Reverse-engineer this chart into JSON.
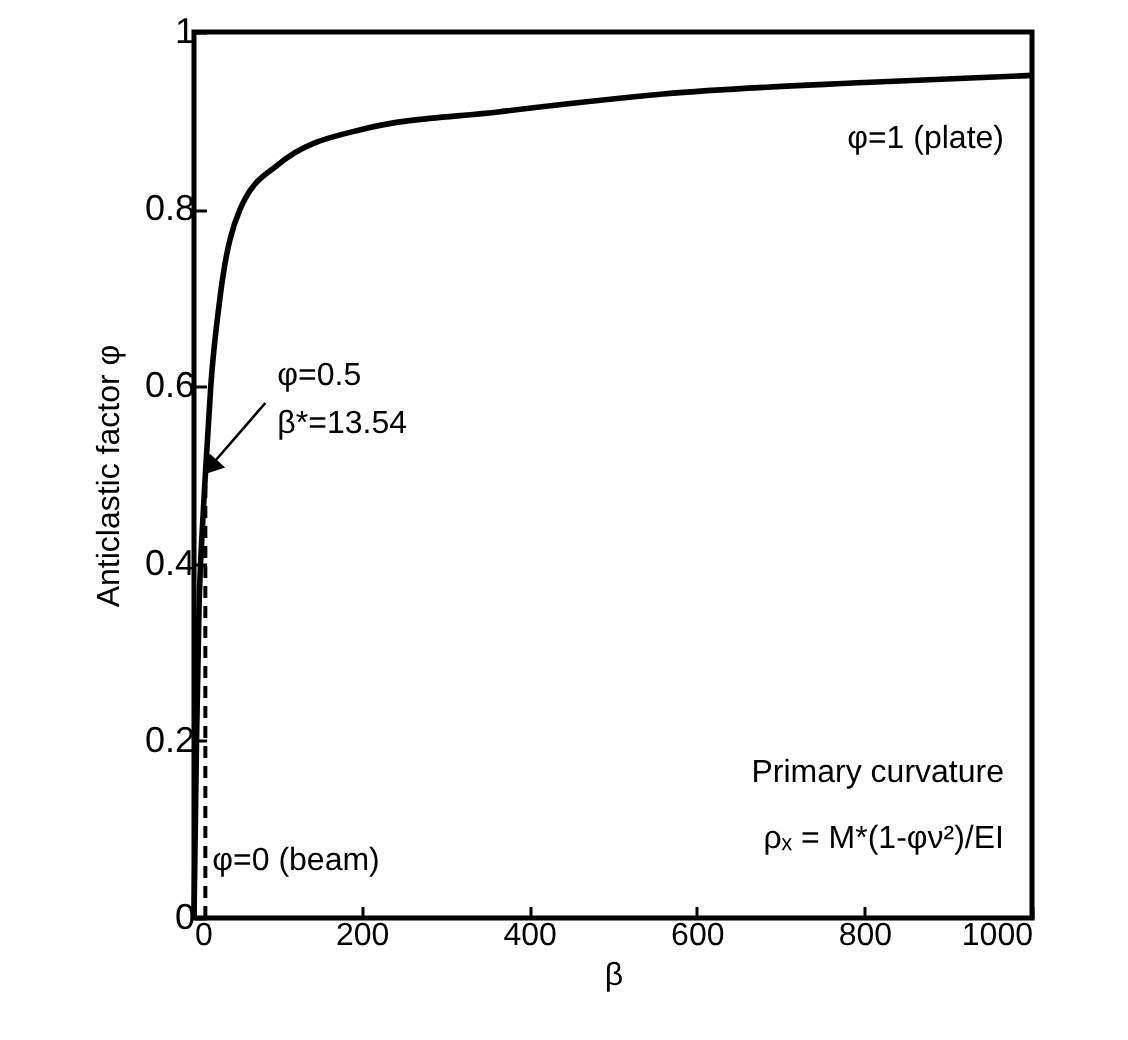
{
  "chart_data": {
    "type": "line",
    "xlabel": "β",
    "ylabel": "Anticlastic factor φ",
    "xlim": [
      0,
      1000
    ],
    "ylim": [
      0,
      1
    ],
    "xticks": [
      0,
      200,
      400,
      600,
      800,
      1000
    ],
    "yticks": [
      0,
      0.2,
      0.4,
      0.6,
      0.8,
      1
    ],
    "grid": false,
    "marker": "none",
    "series": [
      {
        "color": "#000000",
        "line_style": "solid",
        "x": [
          0,
          3,
          6,
          10,
          13.54,
          20,
          31,
          55,
          100,
          200,
          365,
          560,
          800,
          1000
        ],
        "values": [
          0,
          0.2,
          0.35,
          0.44,
          0.5,
          0.6,
          0.7,
          0.8,
          0.85,
          0.89,
          0.91,
          0.93,
          0.943,
          0.951
        ]
      },
      {
        "color": "#000000",
        "line_style": "dashed",
        "x": [
          13.54,
          13.54
        ],
        "values": [
          0,
          0.5
        ]
      }
    ],
    "annotations": [
      {
        "text": "φ=0.5\nβ*=13.54",
        "x": 13.54,
        "y": 0.5
      },
      "φ=1 (plate)",
      "φ=0 (beam)",
      "Primary curvature",
      "ρₓ = M*(1-φν²)/EI"
    ]
  }
}
